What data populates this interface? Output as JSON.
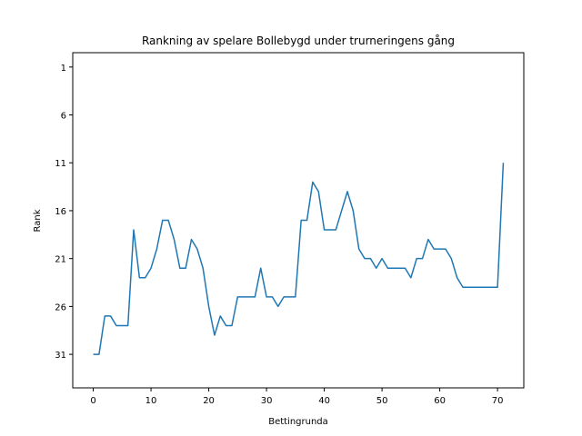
{
  "chart_data": {
    "type": "line",
    "title": "Rankning av spelare Bollebygd under trurneringens gång",
    "xlabel": "Bettingrunda",
    "ylabel": "Rank",
    "xlim": [
      -3.55,
      74.55
    ],
    "ylim": [
      31,
      1
    ],
    "y_inverted": true,
    "x_ticks": [
      0,
      10,
      20,
      30,
      40,
      50,
      60,
      70
    ],
    "y_ticks": [
      1,
      6,
      11,
      16,
      21,
      26,
      31
    ],
    "grid": false,
    "color": "#1f77b4",
    "x": [
      0,
      1,
      2,
      3,
      4,
      5,
      6,
      7,
      8,
      9,
      10,
      11,
      12,
      13,
      14,
      15,
      16,
      17,
      18,
      19,
      20,
      21,
      22,
      23,
      24,
      25,
      26,
      27,
      28,
      29,
      30,
      31,
      32,
      33,
      34,
      35,
      36,
      37,
      38,
      39,
      40,
      41,
      42,
      43,
      44,
      45,
      46,
      47,
      48,
      49,
      50,
      51,
      52,
      53,
      54,
      55,
      56,
      57,
      58,
      59,
      60,
      61,
      62,
      63,
      64,
      65,
      66,
      67,
      68,
      69,
      70,
      71
    ],
    "values": [
      31,
      31,
      27,
      27,
      28,
      28,
      28,
      18,
      23,
      23,
      22,
      20,
      17,
      17,
      19,
      22,
      22,
      19,
      20,
      22,
      26,
      29,
      27,
      28,
      28,
      25,
      25,
      25,
      25,
      22,
      25,
      25,
      26,
      25,
      25,
      25,
      17,
      17,
      13,
      14,
      18,
      18,
      18,
      16,
      14,
      16,
      20,
      21,
      21,
      22,
      21,
      22,
      22,
      22,
      22,
      23,
      21,
      21,
      19,
      20,
      20,
      20,
      21,
      23,
      24,
      24,
      24,
      24,
      24,
      24,
      24,
      11
    ]
  }
}
